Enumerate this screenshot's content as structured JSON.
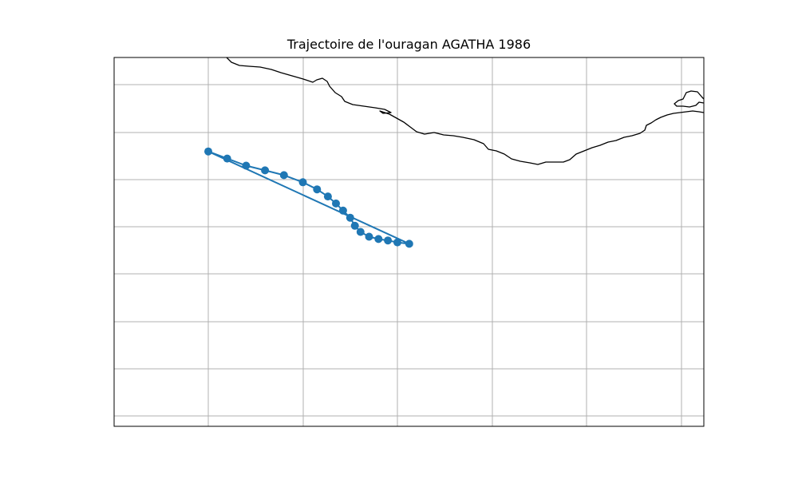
{
  "title": "Trajectoire de l'ouragan AGATHA 1986",
  "colors": {
    "track": "#1f77b4",
    "coastline": "#000000",
    "grid": "#b0b0b0",
    "frame": "#000000"
  },
  "chart_data": {
    "type": "line",
    "title": "Trajectoire de l'ouragan AGATHA 1986",
    "grid": true,
    "marker": "circle",
    "series": [
      {
        "track": [
          [
            -104.0,
            16.0
          ],
          [
            -103.6,
            15.85
          ],
          [
            -103.2,
            15.7
          ],
          [
            -102.8,
            15.6
          ],
          [
            -102.4,
            15.5
          ],
          [
            -102.0,
            15.35
          ],
          [
            -101.7,
            15.2
          ],
          [
            -101.47,
            15.05
          ],
          [
            -101.3,
            14.9
          ],
          [
            -101.15,
            14.75
          ],
          [
            -101.0,
            14.6
          ],
          [
            -100.9,
            14.43
          ],
          [
            -100.78,
            14.3
          ],
          [
            -100.6,
            14.2
          ],
          [
            -100.4,
            14.15
          ],
          [
            -100.2,
            14.12
          ],
          [
            -100.0,
            14.08
          ],
          [
            -99.75,
            14.05
          ],
          [
            -104.0,
            16.0
          ]
        ]
      }
    ]
  }
}
